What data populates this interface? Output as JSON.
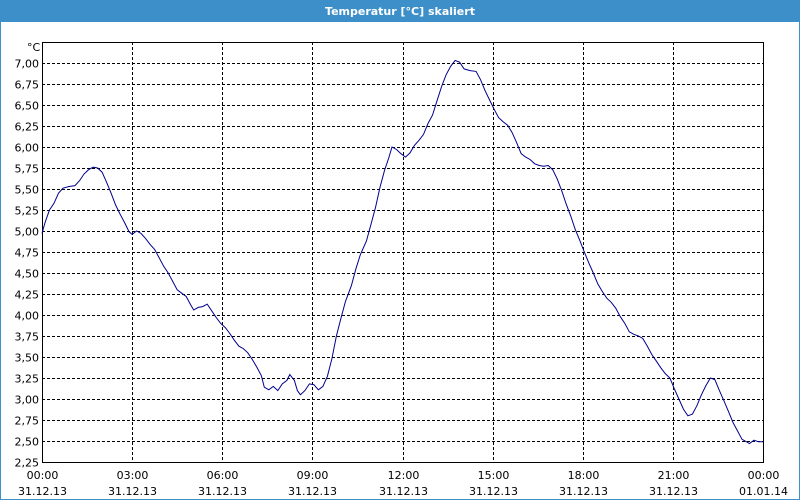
{
  "window": {
    "title": "Temperatur [°C] skaliert"
  },
  "chart_data": {
    "type": "line",
    "title": "Temperatur [°C] skaliert",
    "ylabel": "°C",
    "xlabel": "",
    "ylim": [
      2.25,
      7.25
    ],
    "xlim_hours": [
      0,
      24
    ],
    "grid": true,
    "y_ticks": [
      "2,25",
      "2,50",
      "2,75",
      "3,00",
      "3,25",
      "3,50",
      "3,75",
      "4,00",
      "4,25",
      "4,50",
      "4,75",
      "5,00",
      "5,25",
      "5,50",
      "5,75",
      "6,00",
      "6,25",
      "6,50",
      "6,75",
      "7,00"
    ],
    "x_ticks": [
      {
        "hour": 0,
        "time": "00:00",
        "date": "31.12.13"
      },
      {
        "hour": 3,
        "time": "03:00",
        "date": "31.12.13"
      },
      {
        "hour": 6,
        "time": "06:00",
        "date": "31.12.13"
      },
      {
        "hour": 9,
        "time": "09:00",
        "date": "31.12.13"
      },
      {
        "hour": 12,
        "time": "12:00",
        "date": "31.12.13"
      },
      {
        "hour": 15,
        "time": "15:00",
        "date": "31.12.13"
      },
      {
        "hour": 18,
        "time": "18:00",
        "date": "31.12.13"
      },
      {
        "hour": 21,
        "time": "21:00",
        "date": "31.12.13"
      },
      {
        "hour": 24,
        "time": "00:00",
        "date": "01.01.14"
      }
    ],
    "series": [
      {
        "color": "#00008b",
        "points": [
          [
            0.0,
            4.97
          ],
          [
            0.1,
            5.1
          ],
          [
            0.25,
            5.25
          ],
          [
            0.4,
            5.33
          ],
          [
            0.55,
            5.45
          ],
          [
            0.7,
            5.51
          ],
          [
            0.9,
            5.53
          ],
          [
            1.1,
            5.54
          ],
          [
            1.25,
            5.6
          ],
          [
            1.4,
            5.68
          ],
          [
            1.55,
            5.73
          ],
          [
            1.7,
            5.76
          ],
          [
            1.85,
            5.75
          ],
          [
            2.0,
            5.7
          ],
          [
            2.15,
            5.58
          ],
          [
            2.3,
            5.45
          ],
          [
            2.45,
            5.31
          ],
          [
            2.6,
            5.2
          ],
          [
            2.75,
            5.1
          ],
          [
            2.9,
            4.99
          ],
          [
            3.0,
            4.96
          ],
          [
            3.15,
            5.0
          ],
          [
            3.3,
            4.97
          ],
          [
            3.45,
            4.91
          ],
          [
            3.6,
            4.84
          ],
          [
            3.75,
            4.78
          ],
          [
            3.9,
            4.68
          ],
          [
            4.05,
            4.58
          ],
          [
            4.2,
            4.5
          ],
          [
            4.35,
            4.4
          ],
          [
            4.5,
            4.3
          ],
          [
            4.65,
            4.26
          ],
          [
            4.8,
            4.22
          ],
          [
            4.95,
            4.12
          ],
          [
            5.05,
            4.06
          ],
          [
            5.2,
            4.09
          ],
          [
            5.35,
            4.1
          ],
          [
            5.5,
            4.13
          ],
          [
            5.65,
            4.05
          ],
          [
            5.8,
            3.97
          ],
          [
            5.95,
            3.9
          ],
          [
            6.1,
            3.85
          ],
          [
            6.25,
            3.78
          ],
          [
            6.4,
            3.7
          ],
          [
            6.55,
            3.63
          ],
          [
            6.7,
            3.6
          ],
          [
            6.85,
            3.55
          ],
          [
            7.0,
            3.47
          ],
          [
            7.15,
            3.38
          ],
          [
            7.3,
            3.28
          ],
          [
            7.4,
            3.14
          ],
          [
            7.55,
            3.11
          ],
          [
            7.7,
            3.15
          ],
          [
            7.85,
            3.1
          ],
          [
            8.0,
            3.18
          ],
          [
            8.15,
            3.22
          ],
          [
            8.25,
            3.29
          ],
          [
            8.4,
            3.22
          ],
          [
            8.5,
            3.1
          ],
          [
            8.6,
            3.05
          ],
          [
            8.75,
            3.1
          ],
          [
            8.9,
            3.18
          ],
          [
            9.05,
            3.17
          ],
          [
            9.2,
            3.11
          ],
          [
            9.35,
            3.15
          ],
          [
            9.5,
            3.27
          ],
          [
            9.65,
            3.48
          ],
          [
            9.8,
            3.75
          ],
          [
            9.95,
            3.96
          ],
          [
            10.1,
            4.16
          ],
          [
            10.3,
            4.35
          ],
          [
            10.45,
            4.55
          ],
          [
            10.6,
            4.72
          ],
          [
            10.8,
            4.88
          ],
          [
            10.95,
            5.08
          ],
          [
            11.1,
            5.28
          ],
          [
            11.25,
            5.52
          ],
          [
            11.4,
            5.72
          ],
          [
            11.55,
            5.88
          ],
          [
            11.65,
            6.0
          ],
          [
            11.8,
            5.97
          ],
          [
            11.95,
            5.92
          ],
          [
            12.1,
            5.88
          ],
          [
            12.25,
            5.93
          ],
          [
            12.4,
            6.02
          ],
          [
            12.55,
            6.08
          ],
          [
            12.7,
            6.15
          ],
          [
            12.85,
            6.28
          ],
          [
            13.0,
            6.38
          ],
          [
            13.15,
            6.55
          ],
          [
            13.3,
            6.72
          ],
          [
            13.45,
            6.86
          ],
          [
            13.6,
            6.96
          ],
          [
            13.75,
            7.03
          ],
          [
            13.9,
            7.01
          ],
          [
            14.05,
            6.93
          ],
          [
            14.25,
            6.91
          ],
          [
            14.45,
            6.9
          ],
          [
            14.6,
            6.8
          ],
          [
            14.75,
            6.67
          ],
          [
            14.9,
            6.56
          ],
          [
            15.05,
            6.45
          ],
          [
            15.2,
            6.35
          ],
          [
            15.35,
            6.3
          ],
          [
            15.5,
            6.26
          ],
          [
            15.65,
            6.17
          ],
          [
            15.8,
            6.05
          ],
          [
            15.95,
            5.92
          ],
          [
            16.1,
            5.88
          ],
          [
            16.25,
            5.85
          ],
          [
            16.4,
            5.8
          ],
          [
            16.55,
            5.78
          ],
          [
            16.7,
            5.77
          ],
          [
            16.85,
            5.78
          ],
          [
            17.0,
            5.73
          ],
          [
            17.15,
            5.62
          ],
          [
            17.3,
            5.48
          ],
          [
            17.45,
            5.32
          ],
          [
            17.6,
            5.18
          ],
          [
            17.75,
            5.02
          ],
          [
            17.9,
            4.89
          ],
          [
            18.05,
            4.75
          ],
          [
            18.2,
            4.62
          ],
          [
            18.35,
            4.5
          ],
          [
            18.5,
            4.37
          ],
          [
            18.65,
            4.28
          ],
          [
            18.8,
            4.2
          ],
          [
            18.95,
            4.15
          ],
          [
            19.1,
            4.08
          ],
          [
            19.25,
            3.98
          ],
          [
            19.4,
            3.9
          ],
          [
            19.55,
            3.8
          ],
          [
            19.7,
            3.77
          ],
          [
            19.85,
            3.75
          ],
          [
            20.0,
            3.72
          ],
          [
            20.15,
            3.63
          ],
          [
            20.3,
            3.53
          ],
          [
            20.45,
            3.45
          ],
          [
            20.6,
            3.37
          ],
          [
            20.75,
            3.3
          ],
          [
            20.9,
            3.25
          ],
          [
            21.05,
            3.12
          ],
          [
            21.2,
            3.0
          ],
          [
            21.35,
            2.88
          ],
          [
            21.5,
            2.8
          ],
          [
            21.65,
            2.82
          ],
          [
            21.8,
            2.92
          ],
          [
            21.95,
            3.05
          ],
          [
            22.1,
            3.16
          ],
          [
            22.25,
            3.25
          ],
          [
            22.4,
            3.23
          ],
          [
            22.55,
            3.1
          ],
          [
            22.7,
            2.98
          ],
          [
            22.85,
            2.85
          ],
          [
            23.0,
            2.72
          ],
          [
            23.15,
            2.62
          ],
          [
            23.3,
            2.52
          ],
          [
            23.45,
            2.49
          ],
          [
            23.55,
            2.47
          ],
          [
            23.7,
            2.51
          ],
          [
            23.85,
            2.49
          ],
          [
            24.0,
            2.49
          ]
        ]
      }
    ]
  }
}
